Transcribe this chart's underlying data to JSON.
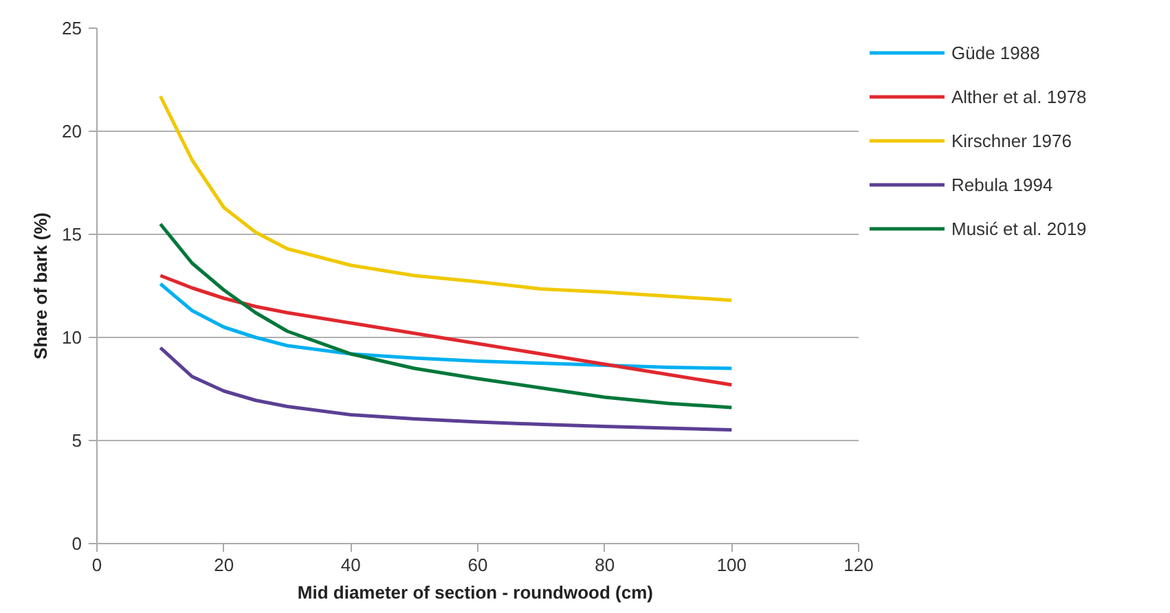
{
  "chart_data": {
    "type": "line",
    "xlabel": "Mid diameter of section - roundwood  (cm)",
    "ylabel": "Share of bark (%)",
    "x": [
      10,
      15,
      20,
      25,
      30,
      40,
      50,
      60,
      70,
      80,
      90,
      100
    ],
    "series": [
      {
        "name": "Güde 1988",
        "color": "#00b0f0",
        "values": [
          12.6,
          11.3,
          10.5,
          10.0,
          9.6,
          9.2,
          9.0,
          8.85,
          8.75,
          8.65,
          8.55,
          8.5
        ]
      },
      {
        "name": "Alther et al. 1978",
        "color": "#e0282e",
        "values": [
          13.0,
          12.4,
          11.9,
          11.5,
          11.2,
          10.7,
          10.2,
          9.7,
          9.2,
          8.7,
          8.2,
          7.7
        ]
      },
      {
        "name": "Kirschner 1976",
        "color": "#f0c800",
        "values": [
          21.7,
          18.6,
          16.3,
          15.1,
          14.3,
          13.5,
          13.0,
          12.7,
          12.35,
          12.2,
          12.0,
          11.8
        ]
      },
      {
        "name": "Rebula 1994",
        "color": "#5b3f94",
        "values": [
          9.5,
          8.1,
          7.4,
          6.95,
          6.65,
          6.25,
          6.05,
          5.9,
          5.78,
          5.68,
          5.6,
          5.52
        ]
      },
      {
        "name": "Musić et al. 2019",
        "color": "#00773a",
        "values": [
          15.5,
          13.6,
          12.3,
          11.2,
          10.3,
          9.2,
          8.5,
          8.0,
          7.55,
          7.1,
          6.8,
          6.6
        ]
      }
    ],
    "xlim": [
      0,
      120
    ],
    "xticks": [
      0,
      20,
      40,
      60,
      80,
      100,
      120
    ],
    "ylim": [
      0,
      25
    ],
    "yticks": [
      0,
      5,
      10,
      15,
      20,
      25
    ],
    "grid": "y",
    "legend": "right",
    "marker": "none",
    "line_style": "solid"
  }
}
